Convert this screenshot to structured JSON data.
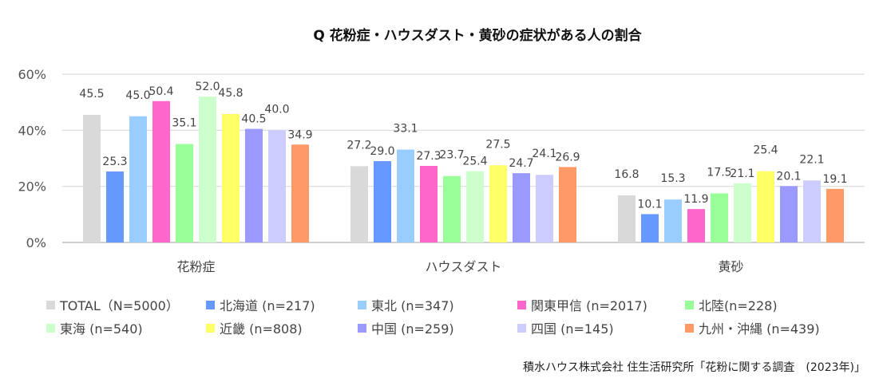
{
  "chart_data": {
    "type": "bar",
    "title": "Q 花粉症・ハウスダスト・黄砂の症状がある人の割合",
    "categories": [
      "花粉症",
      "ハウスダスト",
      "黄砂"
    ],
    "ylim": [
      0,
      60
    ],
    "yticks": [
      "0%",
      "20%",
      "40%",
      "60%"
    ],
    "grid": true,
    "legend_position": "bottom",
    "series": [
      {
        "name": "TOTAL（N=5000）",
        "color": "#d9d9d9",
        "values": [
          45.5,
          27.2,
          16.8
        ]
      },
      {
        "name": "北海道 (n=217)",
        "color": "#6699ff",
        "values": [
          25.3,
          29.0,
          10.1
        ]
      },
      {
        "name": "東北 (n=347)",
        "color": "#99ccff",
        "values": [
          45.0,
          33.1,
          15.3
        ]
      },
      {
        "name": "関東甲信 (n=2017)",
        "color": "#ff66cc",
        "values": [
          50.4,
          27.3,
          11.9
        ]
      },
      {
        "name": "北陸(n=228)",
        "color": "#99ff99",
        "values": [
          35.1,
          23.7,
          17.5
        ]
      },
      {
        "name": "東海 (n=540)",
        "color": "#ccffcc",
        "values": [
          52.0,
          25.4,
          21.1
        ]
      },
      {
        "name": "近畿 (n=808)",
        "color": "#ffff66",
        "values": [
          45.8,
          27.5,
          25.4
        ]
      },
      {
        "name": "中国 (n=259)",
        "color": "#9999ff",
        "values": [
          40.5,
          24.7,
          20.1
        ]
      },
      {
        "name": "四国 (n=145)",
        "color": "#ccccff",
        "values": [
          40.0,
          24.1,
          22.1
        ]
      },
      {
        "name": "九州・沖縄 (n=439)",
        "color": "#ff9966",
        "values": [
          34.9,
          26.9,
          19.1
        ]
      }
    ]
  },
  "source": "積水ハウス株式会社 住生活研究所「花粉に関する調査　(2023年)」"
}
